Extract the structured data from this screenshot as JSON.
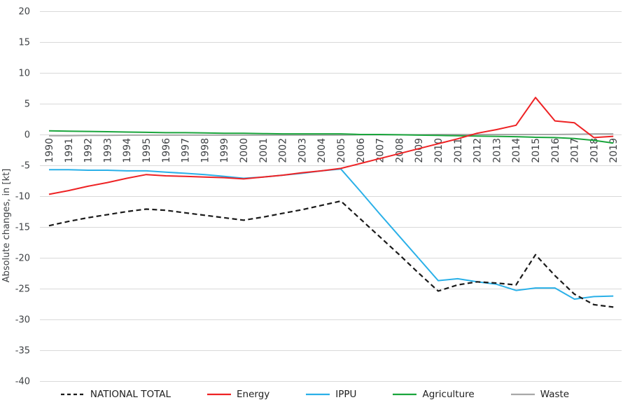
{
  "chart_data": {
    "type": "line",
    "title": "",
    "xlabel": "",
    "ylabel": "Absolute changes, in [kt]",
    "ylim": [
      -40,
      20
    ],
    "ytick_step": 5,
    "yticks": [
      20,
      15,
      10,
      5,
      0,
      -5,
      -10,
      -15,
      -20,
      -25,
      -30,
      -35,
      -40
    ],
    "grid": "horizontal",
    "legend_position": "bottom",
    "x_labels_rotated_90": true,
    "categories": [
      "1990",
      "1991",
      "1992",
      "1993",
      "1994",
      "1995",
      "1996",
      "1997",
      "1998",
      "1999",
      "2000",
      "2001",
      "2002",
      "2003",
      "2004",
      "2005",
      "2006",
      "2007",
      "2008",
      "2009",
      "2010",
      "2011",
      "2012",
      "2013",
      "2014",
      "2015",
      "2016",
      "2017",
      "2018",
      "2019"
    ],
    "series": [
      {
        "name": "NATIONAL TOTAL",
        "color": "#1a1a1a",
        "style": "dashed",
        "values": [
          -14.8,
          -14.1,
          -13.5,
          -13.0,
          -12.5,
          -12.1,
          -12.3,
          -12.7,
          -13.1,
          -13.5,
          -13.9,
          -13.4,
          -12.8,
          -12.2,
          -11.5,
          -10.8,
          -13.7,
          -16.6,
          -19.5,
          -22.5,
          -25.4,
          -24.4,
          -23.9,
          -24.1,
          -24.4,
          -19.5,
          -22.9,
          -25.9,
          -27.6,
          -28.0
        ]
      },
      {
        "name": "Energy",
        "color": "#ee2224",
        "style": "solid",
        "values": [
          -9.7,
          -9.1,
          -8.4,
          -7.8,
          -7.1,
          -6.5,
          -6.7,
          -6.8,
          -6.9,
          -7.0,
          -7.2,
          -6.9,
          -6.6,
          -6.2,
          -5.9,
          -5.5,
          -4.7,
          -3.9,
          -3.1,
          -2.3,
          -1.5,
          -0.7,
          0.2,
          0.8,
          1.5,
          6.0,
          2.2,
          1.9,
          -0.5,
          -0.3
        ]
      },
      {
        "name": "IPPU",
        "color": "#2ab0e8",
        "style": "solid",
        "values": [
          -5.7,
          -5.7,
          -5.8,
          -5.8,
          -5.9,
          -5.9,
          -6.1,
          -6.3,
          -6.5,
          -6.8,
          -7.1,
          -6.9,
          -6.6,
          -6.3,
          -5.9,
          -5.6,
          -9.2,
          -12.9,
          -16.5,
          -20.1,
          -23.7,
          -23.4,
          -23.9,
          -24.3,
          -25.3,
          -24.9,
          -24.9,
          -26.7,
          -26.3,
          -26.2
        ]
      },
      {
        "name": "Agriculture",
        "color": "#1aa53c",
        "style": "solid",
        "values": [
          0.6,
          0.55,
          0.5,
          0.45,
          0.4,
          0.35,
          0.3,
          0.3,
          0.25,
          0.2,
          0.2,
          0.15,
          0.1,
          0.1,
          0.1,
          0.1,
          0.0,
          0.0,
          -0.05,
          -0.1,
          -0.15,
          -0.2,
          -0.25,
          -0.3,
          -0.35,
          -0.45,
          -0.5,
          -0.65,
          -0.95,
          -1.4
        ]
      },
      {
        "name": "Waste",
        "color": "#a8a8a8",
        "style": "solid",
        "values": [
          -0.2,
          -0.2,
          -0.15,
          -0.15,
          -0.1,
          -0.1,
          -0.1,
          -0.1,
          -0.1,
          -0.1,
          -0.1,
          -0.1,
          -0.1,
          -0.1,
          -0.1,
          -0.1,
          -0.05,
          -0.05,
          -0.05,
          -0.05,
          0.0,
          0.0,
          0.0,
          0.0,
          0.0,
          0.0,
          0.0,
          0.05,
          0.1,
          0.1
        ]
      }
    ],
    "colors": {
      "background": "#ffffff",
      "gridline": "#d9d9d9",
      "axis_text": "#3f4245",
      "legend_text": "#1f1f1f"
    }
  }
}
